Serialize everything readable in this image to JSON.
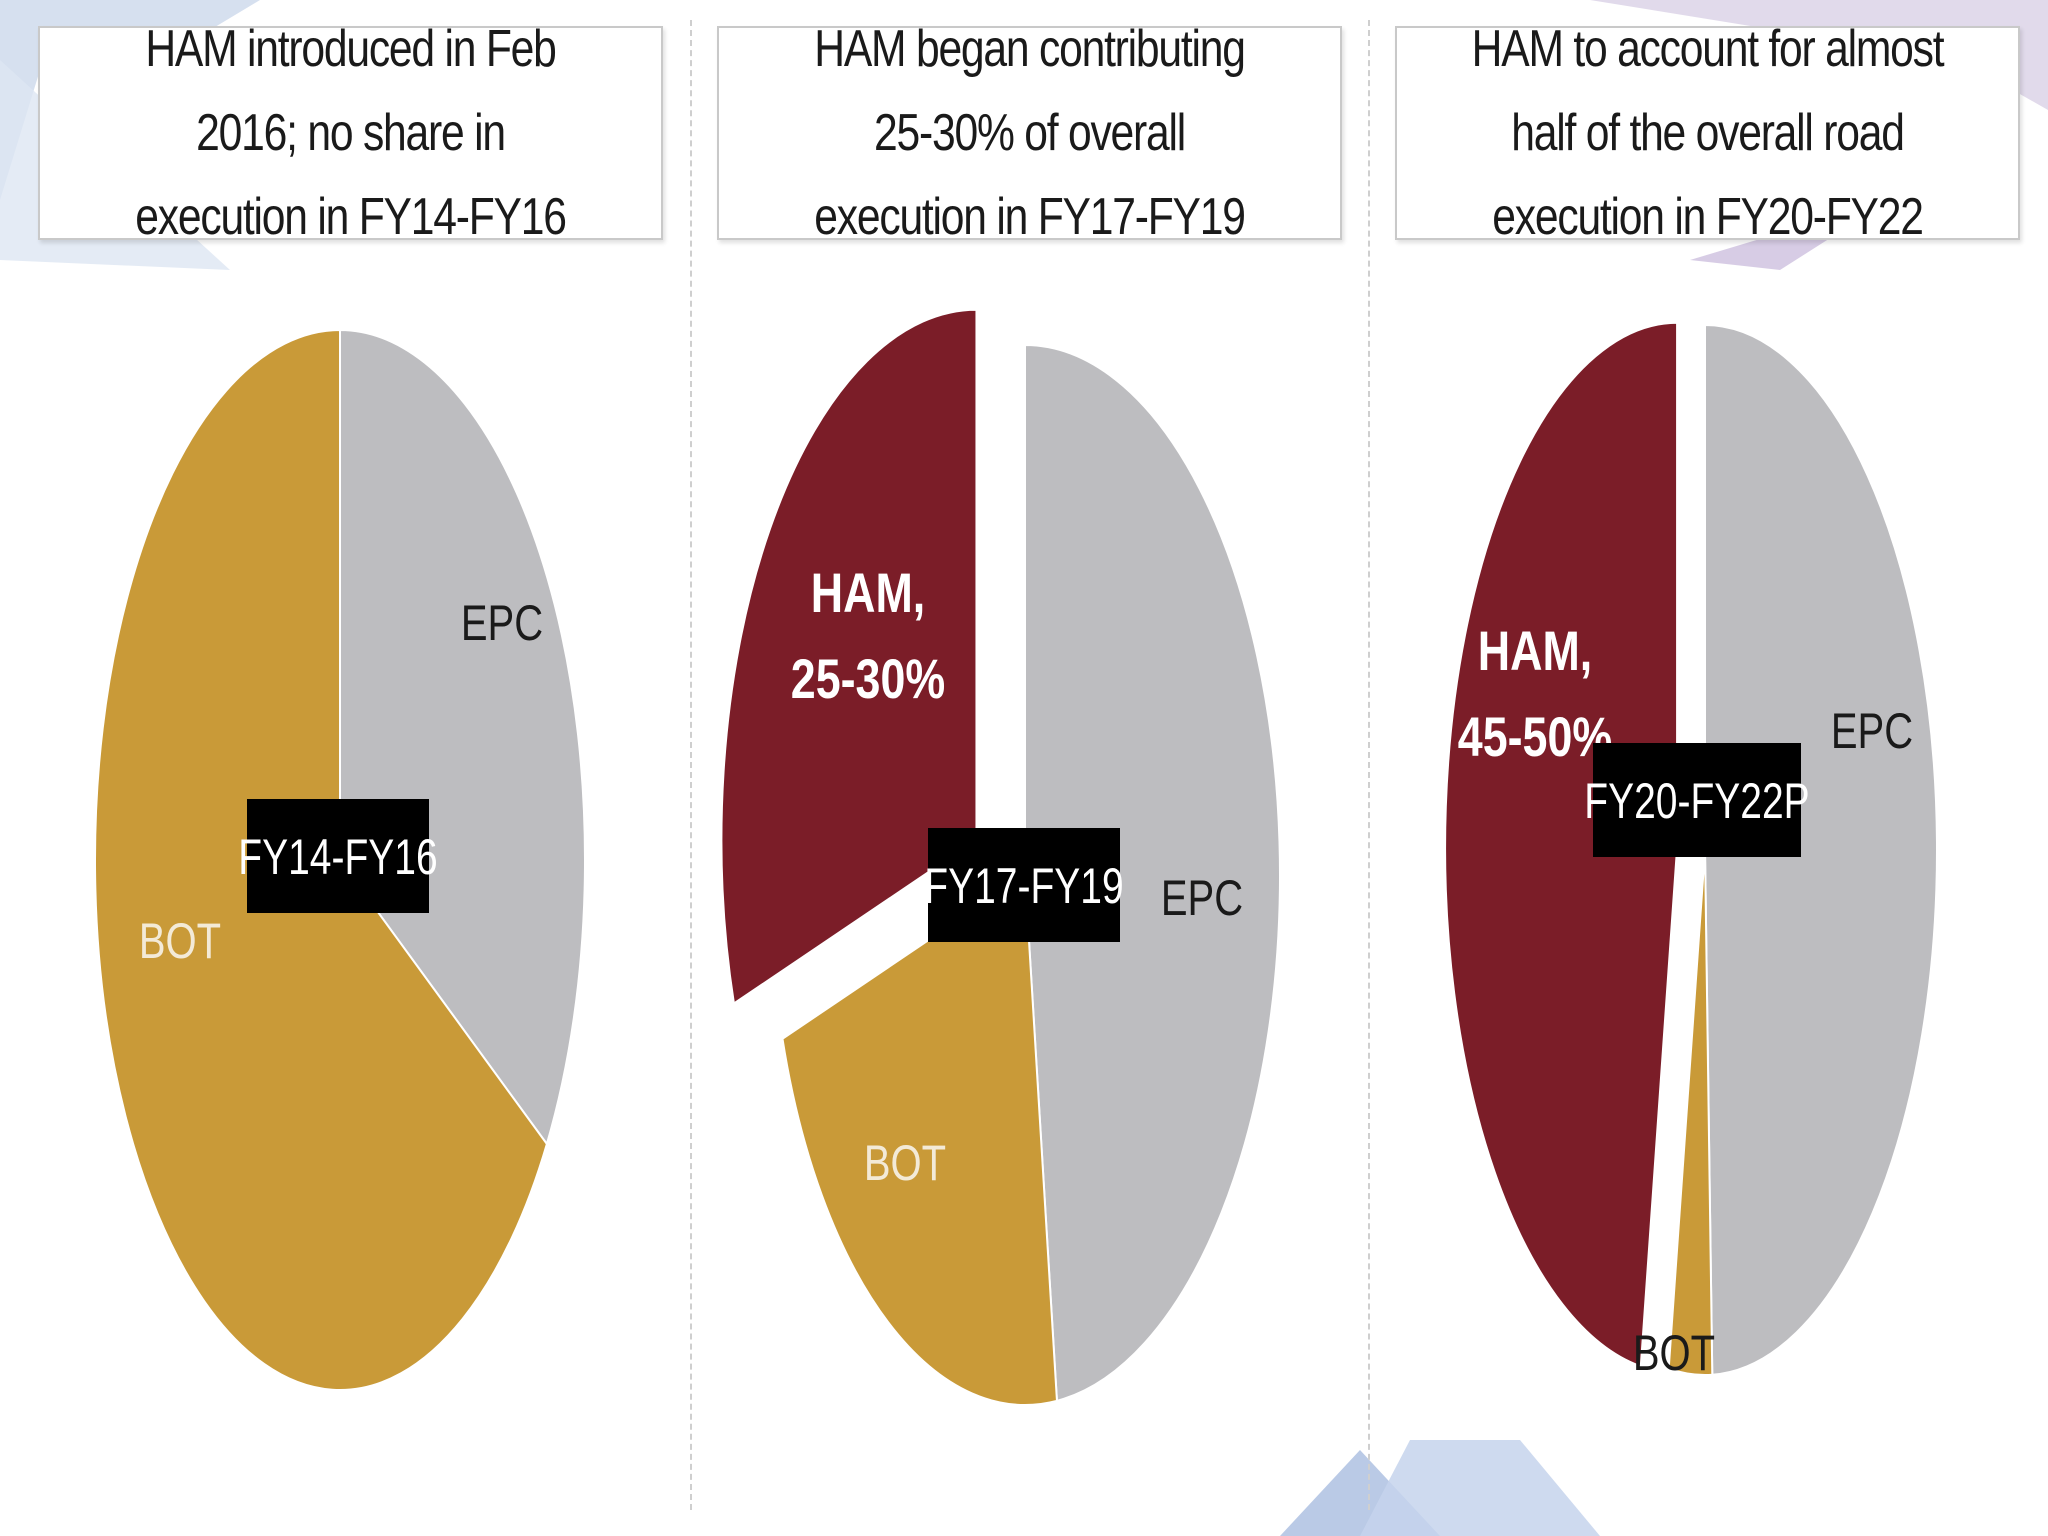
{
  "colors": {
    "HAM": "#7b1d28",
    "EPC": "#bdbdc0",
    "BOT": "#c99a38",
    "tag_bg": "#000000",
    "tag_text": "#ffffff"
  },
  "chart_data": [
    {
      "type": "pie",
      "title": "HAM introduced in Feb 2016; no share in execution in FY14-FY16",
      "center_label": "FY14-FY16",
      "slices": [
        {
          "name": "EPC",
          "label": "EPC",
          "value": 34,
          "color": "#bdbdc0"
        },
        {
          "name": "BOT",
          "label": "BOT",
          "value": 66,
          "color": "#c99a38"
        }
      ]
    },
    {
      "type": "pie",
      "title": "HAM began contributing 25-30% of overall execution in FY17-FY19",
      "center_label": "FY17-FY19",
      "slices": [
        {
          "name": "EPC",
          "label": "EPC",
          "value": 48,
          "color": "#bdbdc0"
        },
        {
          "name": "BOT",
          "label": "BOT",
          "value": 22,
          "color": "#c99a38"
        },
        {
          "name": "HAM",
          "label": "HAM, 25-30%",
          "value": 30,
          "color": "#7b1d28"
        }
      ]
    },
    {
      "type": "pie",
      "title": "HAM to account for almost half of the overall road execution in FY20-FY22",
      "center_label": "FY20-FY22P",
      "slices": [
        {
          "name": "EPC",
          "label": "EPC",
          "value": 49.5,
          "color": "#bdbdc0"
        },
        {
          "name": "BOT",
          "label": "BOT",
          "value": 3,
          "color": "#c99a38"
        },
        {
          "name": "HAM",
          "label": "HAM, 45-50%",
          "value": 47.5,
          "color": "#7b1d28"
        }
      ]
    }
  ]
}
